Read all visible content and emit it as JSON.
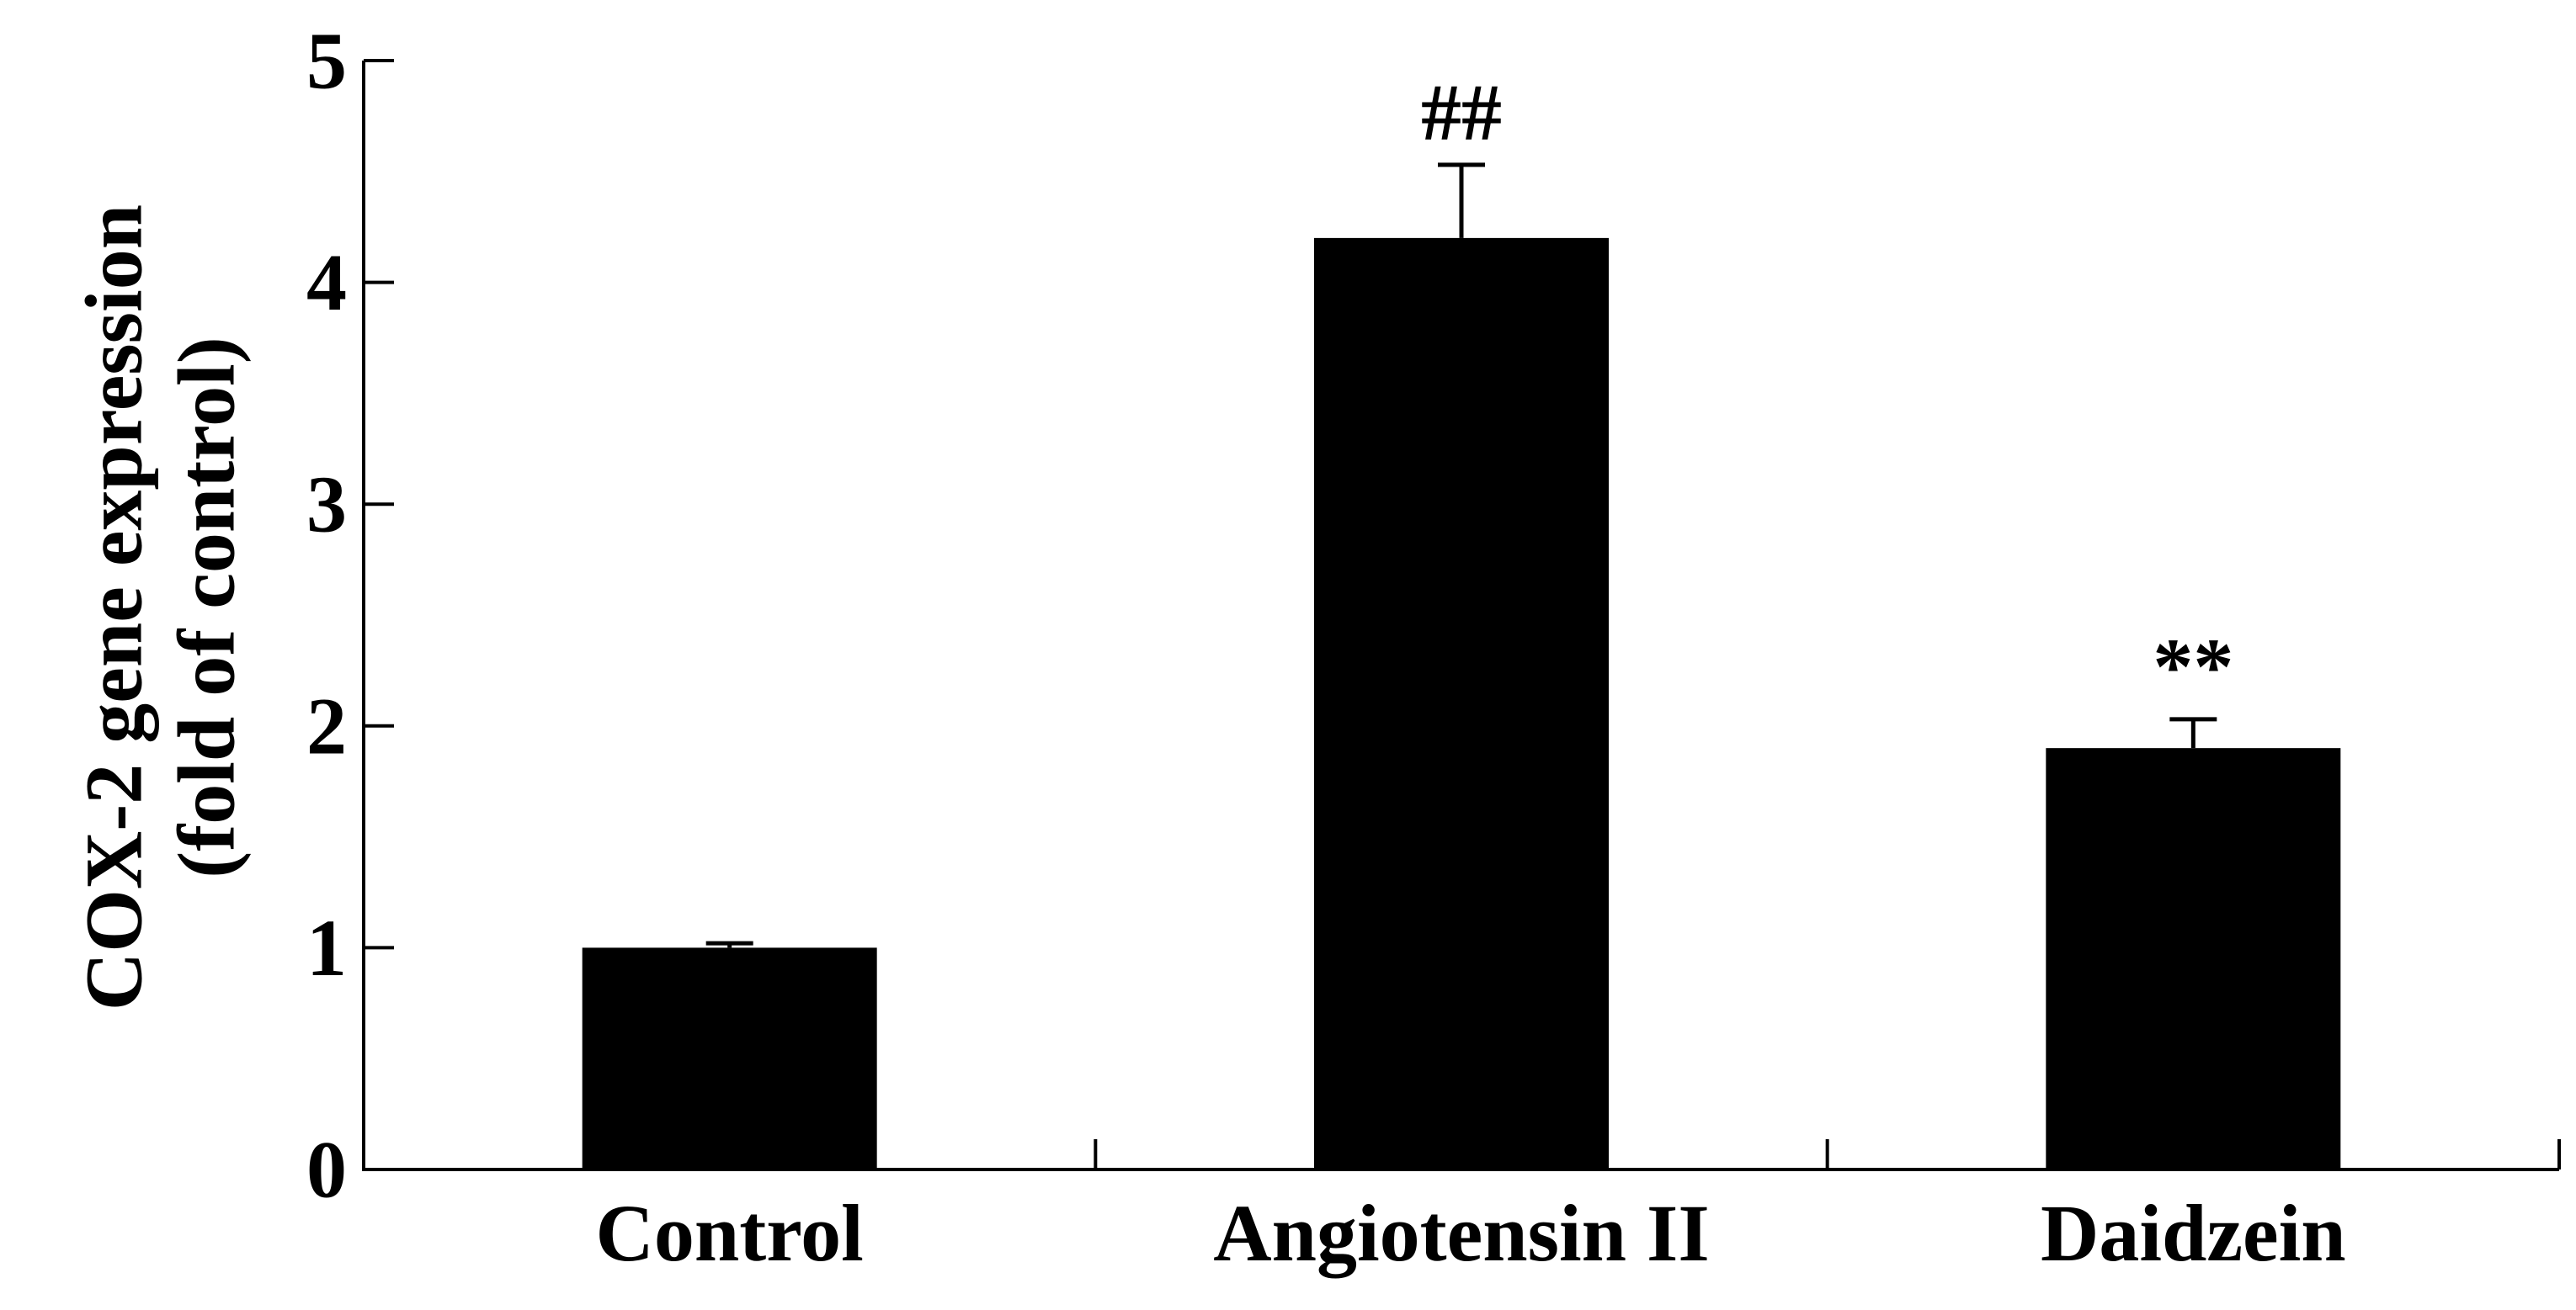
{
  "chart_data": {
    "type": "bar",
    "title": "",
    "xlabel": "",
    "ylabel": [
      "COX-2 gene expression",
      "(fold of control)"
    ],
    "ylim": [
      0,
      5
    ],
    "yticks": [
      0,
      1,
      2,
      3,
      4,
      5
    ],
    "grid": false,
    "categories": [
      "Control",
      "Angiotensin II",
      "Daidzein"
    ],
    "values": [
      1.0,
      4.2,
      1.9
    ],
    "errors": [
      0.02,
      0.33,
      0.13
    ],
    "annotations": [
      "",
      "##",
      "**"
    ],
    "colors": {
      "bar": "#000000",
      "axis": "#000000",
      "background": "#ffffff"
    }
  }
}
